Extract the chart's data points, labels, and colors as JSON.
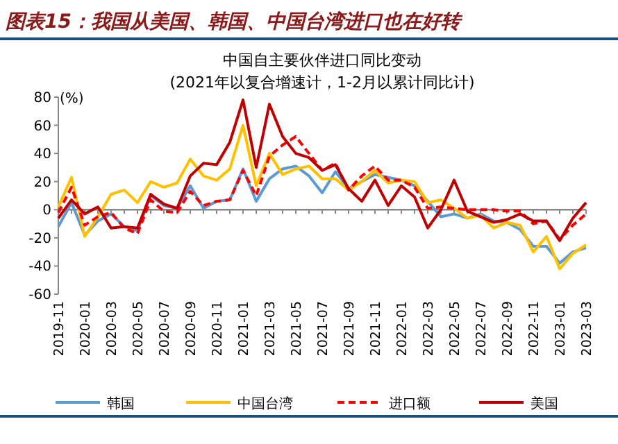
{
  "chart_data": {
    "type": "line",
    "title": "图表15：我国从美国、韩国、中国台湾进口也在好转",
    "subtitle": "中国自主要伙伴进口同比变动",
    "annotations": [
      "(2021年以复合增速计，1-2月以累计同比计)"
    ],
    "ylabel": "(%)",
    "categories": [
      "2019-11",
      null,
      "2020-01",
      null,
      "2020-03",
      null,
      "2020-05",
      null,
      "2020-07",
      null,
      "2020-09",
      null,
      "2020-11",
      null,
      "2021-01",
      null,
      "2021-03",
      null,
      "2021-05",
      null,
      "2021-07",
      null,
      "2021-09",
      null,
      "2021-11",
      null,
      "2022-01",
      null,
      "2022-03",
      null,
      "2022-05",
      null,
      "2022-07",
      null,
      "2022-09",
      null,
      "2022-11",
      null,
      "2023-01",
      null,
      "2023-03"
    ],
    "ylim": [
      -60,
      80
    ],
    "yticks": [
      -60,
      -40,
      -20,
      0,
      20,
      40,
      60,
      80
    ],
    "legend": "bottom",
    "series": [
      {
        "name": "韩国",
        "color": "#5b9bd5",
        "line_style": "solid",
        "values": [
          -12,
          5,
          -18,
          -8,
          -3,
          -12,
          -15,
          10,
          3,
          1,
          17,
          1,
          6,
          7,
          29,
          6,
          22,
          29,
          31,
          24,
          12,
          27,
          15,
          20,
          25,
          23,
          21,
          17,
          6,
          -5,
          -3,
          -6,
          -3,
          -8,
          -9,
          -14,
          -26,
          -26,
          -38,
          -30,
          -27
        ]
      },
      {
        "name": "中国台湾",
        "color": "#ffc000",
        "line_style": "solid",
        "values": [
          2,
          23,
          -19,
          -5,
          11,
          14,
          5,
          20,
          16,
          19,
          36,
          24,
          21,
          29,
          60,
          17,
          40,
          25,
          29,
          31,
          22,
          22,
          14,
          20,
          28,
          19,
          21,
          20,
          5,
          7,
          1,
          -6,
          -4,
          -13,
          -9,
          -11,
          -30,
          -19,
          -42,
          -31,
          -25
        ]
      },
      {
        "name": "进口额",
        "color": "#ff0000",
        "line_style": "dashed",
        "values": [
          -2,
          16,
          -11,
          -5,
          -2,
          -13,
          -17,
          7,
          -1,
          -2,
          13,
          3,
          6,
          7,
          28,
          10,
          38,
          46,
          52,
          40,
          28,
          33,
          14,
          24,
          31,
          21,
          21,
          16,
          1,
          2,
          1,
          0,
          0,
          0,
          -1,
          -1,
          -10,
          -8,
          -21,
          -11,
          -3
        ]
      },
      {
        "name": "美国",
        "color": "#c00000",
        "line_style": "solid",
        "values": [
          -6,
          7,
          -3,
          2,
          -13,
          -12,
          -13,
          11,
          4,
          1,
          24,
          33,
          32,
          48,
          78,
          30,
          75,
          52,
          40,
          37,
          28,
          32,
          15,
          6,
          21,
          3,
          17,
          9,
          -13,
          0,
          21,
          -1,
          -5,
          -9,
          -7,
          -3,
          -8,
          -8,
          -22,
          -6,
          5
        ]
      }
    ]
  }
}
